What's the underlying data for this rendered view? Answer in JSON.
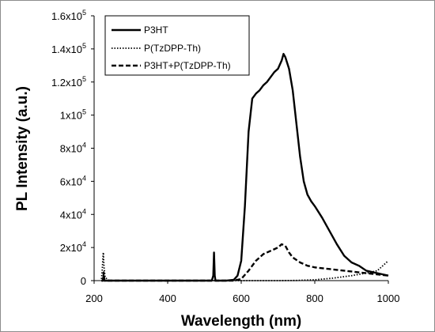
{
  "chart_data": {
    "type": "line",
    "xlabel": "Wavelength (nm)",
    "ylabel": "PL Intensity (a.u.)",
    "xlim": [
      200,
      1000
    ],
    "ylim": [
      0,
      160000
    ],
    "x_ticks": [
      200,
      400,
      600,
      800,
      1000
    ],
    "y_ticks": [
      {
        "value": 0,
        "mant": "0",
        "exp": ""
      },
      {
        "value": 20000,
        "mant": "2x10",
        "exp": "4"
      },
      {
        "value": 40000,
        "mant": "4x10",
        "exp": "4"
      },
      {
        "value": 60000,
        "mant": "6x10",
        "exp": "4"
      },
      {
        "value": 80000,
        "mant": "8x10",
        "exp": "4"
      },
      {
        "value": 100000,
        "mant": "1x10",
        "exp": "5"
      },
      {
        "value": 120000,
        "mant": "1.2x10",
        "exp": "5"
      },
      {
        "value": 140000,
        "mant": "1.4x10",
        "exp": "5"
      },
      {
        "value": 160000,
        "mant": "1.6x10",
        "exp": "5"
      }
    ],
    "grid": false,
    "legend_position": "top-left",
    "series": [
      {
        "name": "P3HT",
        "style": "solid",
        "x": [
          220,
          224,
          226,
          228,
          230,
          300,
          400,
          500,
          520,
          524,
          526,
          528,
          530,
          540,
          560,
          580,
          590,
          600,
          610,
          620,
          630,
          640,
          650,
          660,
          670,
          680,
          690,
          700,
          710,
          715,
          720,
          730,
          740,
          750,
          760,
          770,
          780,
          790,
          800,
          820,
          840,
          860,
          880,
          900,
          920,
          940,
          960,
          980,
          1000
        ],
        "y": [
          0,
          0,
          3000,
          0,
          0,
          0,
          0,
          0,
          0,
          3000,
          17000,
          3000,
          0,
          0,
          0,
          500,
          3000,
          12000,
          45000,
          90000,
          110000,
          113000,
          115000,
          118000,
          120000,
          123000,
          126000,
          128000,
          133000,
          137000,
          135000,
          128000,
          115000,
          95000,
          75000,
          60000,
          52000,
          48000,
          45000,
          38000,
          30000,
          22000,
          15000,
          11000,
          9000,
          6000,
          5000,
          4000,
          3000
        ]
      },
      {
        "name": "P(TzDPP-Th)",
        "style": "dotted",
        "x": [
          220,
          222,
          224,
          225,
          227,
          230,
          240,
          260,
          300,
          400,
          500,
          600,
          700,
          750,
          800,
          850,
          900,
          950,
          970,
          990,
          1000
        ],
        "y": [
          1000,
          6000,
          14000,
          17000,
          8000,
          2000,
          0,
          0,
          0,
          0,
          0,
          0,
          0,
          100,
          500,
          1500,
          3000,
          5000,
          6000,
          10000,
          12000
        ]
      },
      {
        "name": "P3HT+P(TzDPP-Th)",
        "style": "dashed",
        "x": [
          220,
          224,
          226,
          228,
          230,
          300,
          400,
          500,
          580,
          600,
          620,
          640,
          660,
          680,
          700,
          710,
          720,
          730,
          740,
          760,
          780,
          800,
          820,
          840,
          860,
          880,
          900,
          920,
          940,
          960,
          980,
          1000
        ],
        "y": [
          0,
          0,
          5000,
          0,
          0,
          0,
          0,
          0,
          0,
          1000,
          6000,
          12000,
          16000,
          18000,
          20000,
          22000,
          21000,
          17000,
          14000,
          11000,
          9000,
          8000,
          7500,
          7000,
          6500,
          6000,
          5500,
          5000,
          4500,
          4000,
          3500,
          3000
        ]
      }
    ]
  }
}
